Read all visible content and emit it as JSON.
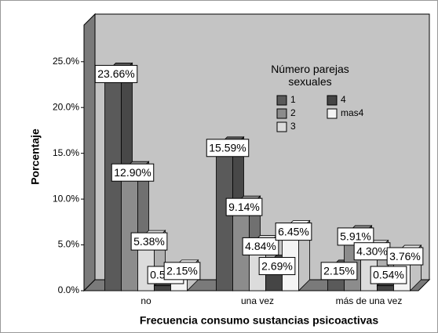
{
  "chart_data": {
    "type": "bar3d",
    "x_label": "Frecuencia consumo sustancias psicoactivas",
    "y_label": "Porcentaje",
    "legend_title": "Número parejas sexuales",
    "categories": [
      "no",
      "una vez",
      "más de una vez"
    ],
    "series": [
      {
        "name": "1",
        "color": "#5a5a5a",
        "values": [
          23.66,
          15.59,
          2.15
        ],
        "value_labels": [
          "23.66%",
          "15.59%",
          "2.15%"
        ]
      },
      {
        "name": "2",
        "color": "#8c8c8c",
        "values": [
          12.9,
          9.14,
          5.91
        ],
        "value_labels": [
          "12.90%",
          "9.14%",
          "5.91%"
        ]
      },
      {
        "name": "3",
        "color": "#dcdcdc",
        "values": [
          5.38,
          4.84,
          4.3
        ],
        "value_labels": [
          "5.38%",
          "4.84%",
          "4.30%"
        ]
      },
      {
        "name": "4",
        "color": "#454545",
        "values": [
          0.54,
          2.69,
          0.54
        ],
        "value_labels": [
          "0.54%",
          "2.69%",
          "0.54%"
        ]
      },
      {
        "name": "mas4",
        "color": "#f4f4f4",
        "values": [
          2.15,
          6.45,
          3.76
        ],
        "value_labels": [
          "2.15%",
          "6.45%",
          "3.76%"
        ]
      }
    ],
    "ylim": [
      0,
      29
    ],
    "yticks": [
      {
        "value": 0,
        "label": "0.0%"
      },
      {
        "value": 5,
        "label": "5.0%"
      },
      {
        "value": 10,
        "label": "10.0%"
      },
      {
        "value": 15,
        "label": "15.0%"
      },
      {
        "value": 20,
        "label": "20.0%"
      },
      {
        "value": 25,
        "label": "25.0%"
      }
    ]
  }
}
